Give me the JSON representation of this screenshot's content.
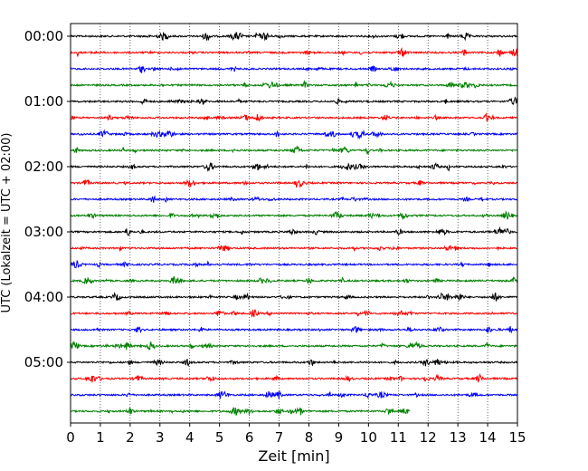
{
  "chart_data": {
    "type": "line",
    "subtype": "helicorder",
    "xlabel": "Zeit  [min]",
    "ylabel": "UTC (Lokalzeit = UTC + 02:00)",
    "xlim": [
      0,
      15
    ],
    "x_ticks": [
      "0",
      "1",
      "2",
      "3",
      "4",
      "5",
      "6",
      "7",
      "8",
      "9",
      "10",
      "11",
      "12",
      "13",
      "14",
      "15"
    ],
    "row_minutes": 15,
    "rows": 24,
    "last_row_end_minute": 11.4,
    "y_tick_labels": [
      "00:00",
      "01:00",
      "02:00",
      "03:00",
      "04:00",
      "05:00"
    ],
    "vertical_grid": "dotted at every minute",
    "colors": [
      "#000000",
      "#ff0000",
      "#0000ff",
      "#008000"
    ]
  }
}
